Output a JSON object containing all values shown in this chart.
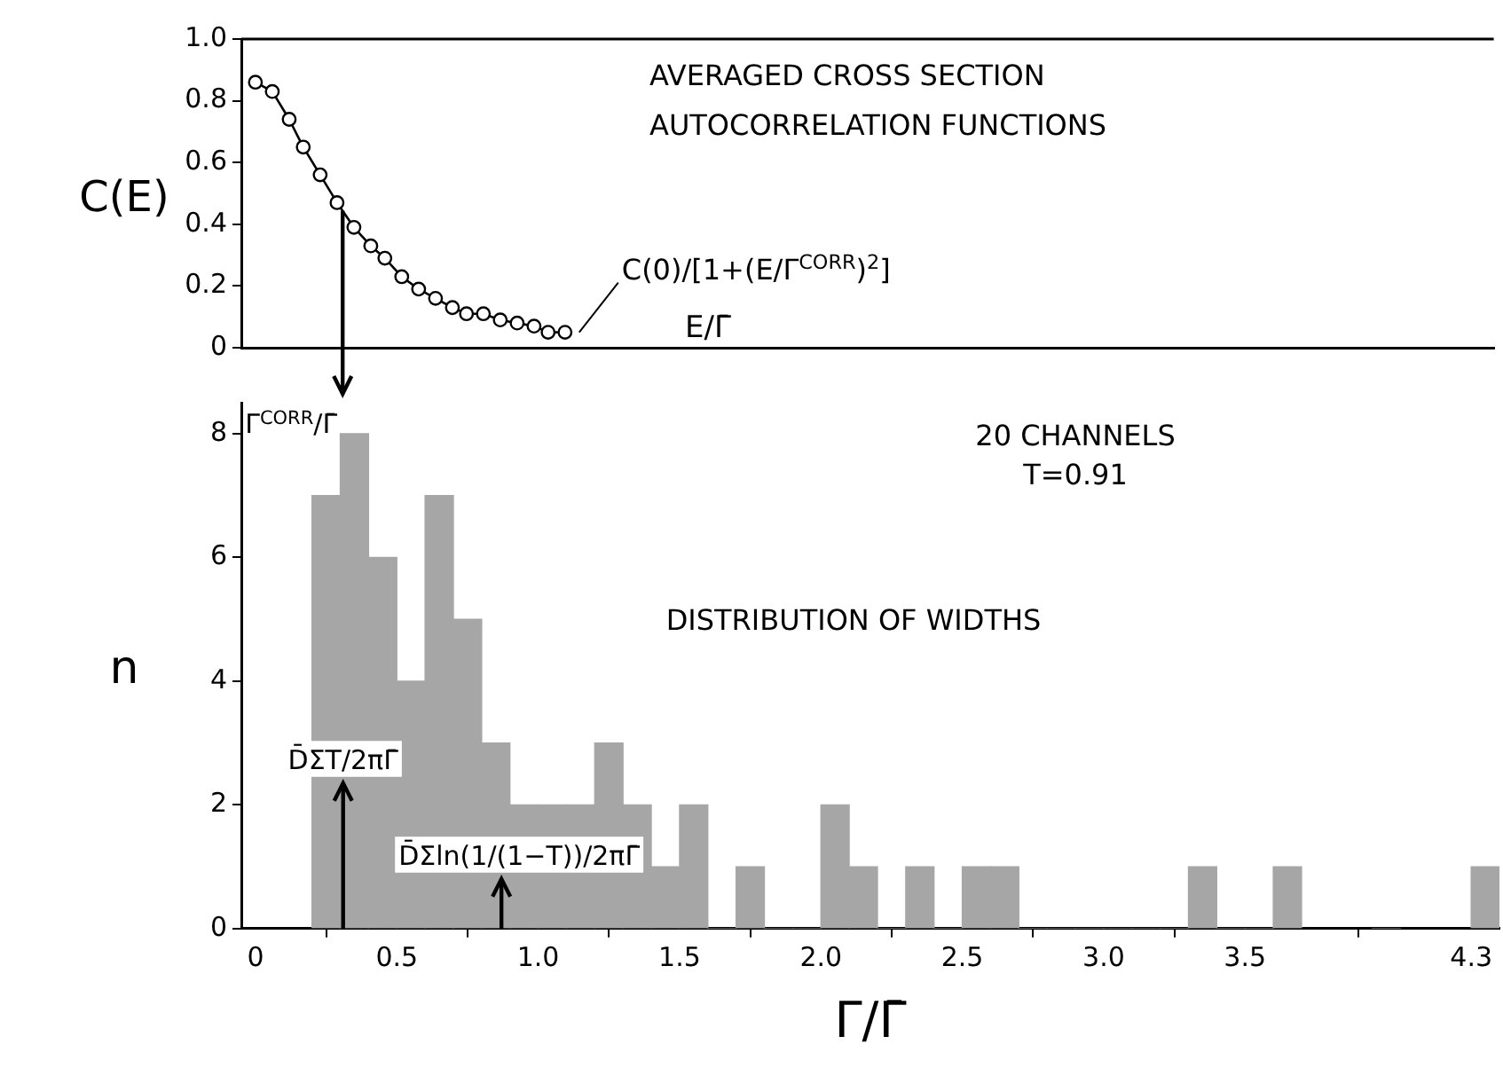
{
  "chart_data": [
    {
      "type": "line",
      "ylabel": "C(E)",
      "xlabel": "E/Γ̄",
      "marker": "circle",
      "tick_labels": "y",
      "xlim": [
        -0.05,
        4.4
      ],
      "ylim": [
        0,
        1
      ],
      "yticks": [
        0,
        0.2,
        0.4,
        0.6,
        0.8,
        {
          "value": 1,
          "label": "1.0"
        }
      ],
      "series": [
        {
          "color": "#000000",
          "x": [
            0,
            0.06,
            0.12,
            0.17,
            0.23,
            0.29,
            0.35,
            0.41,
            0.46,
            0.52,
            0.58,
            0.64,
            0.7,
            0.75,
            0.81,
            0.87,
            0.93,
            0.99,
            1.04,
            1.1
          ],
          "values": [
            0.86,
            0.83,
            0.74,
            0.65,
            0.56,
            0.47,
            0.39,
            0.33,
            0.29,
            0.23,
            0.19,
            0.16,
            0.13,
            0.11,
            0.11,
            0.09,
            0.08,
            0.07,
            0.05,
            0.05
          ]
        }
      ],
      "ref_lines": [
        {
          "axis": "x",
          "value": 0.31,
          "label": "Γ$^{CORR}$/Γ̄"
        }
      ],
      "annotations": [
        "AVERAGED CROSS SECTION\nAUTOCORRELATION FUNCTIONS",
        {
          "text": "C(0)/[1+(E/Γ$^{CORR}$)$^{2}$]",
          "x": 1.1,
          "y": 0.05
        }
      ]
    },
    {
      "type": "histogram",
      "xlabel": "Γ/Γ̄",
      "ylabel": "n",
      "color": "#a6a6a6",
      "bins": [
        0.2,
        0.3,
        0.4,
        0.5,
        0.6,
        0.7,
        0.8,
        0.9,
        1.0,
        1.1,
        1.2,
        1.3,
        1.4,
        1.5,
        1.6,
        1.7,
        1.8,
        1.9,
        2.0,
        2.1,
        2.2,
        2.3,
        2.4,
        2.5,
        2.6,
        2.7,
        2.8,
        2.9,
        3.0,
        3.1,
        3.2,
        3.3,
        3.4,
        3.5,
        3.6,
        3.7,
        4.3,
        4.4
      ],
      "values": [
        7,
        8,
        6,
        4,
        7,
        5,
        3,
        2,
        2,
        2,
        3,
        2,
        1,
        2,
        0,
        1,
        0,
        0,
        2,
        1,
        0,
        1,
        0,
        1,
        1,
        0,
        0,
        0,
        0,
        0,
        0,
        1,
        0,
        0,
        1,
        0,
        1
      ],
      "xlim": [
        -0.05,
        4.4
      ],
      "xticks": [
        0,
        0.5,
        {
          "value": 1,
          "label": "1.0"
        },
        1.5,
        {
          "value": 2,
          "label": "2.0"
        },
        2.5,
        {
          "value": 3,
          "label": "3.0"
        },
        3.5,
        4.3
      ],
      "ylim": [
        0,
        8.5
      ],
      "yticks": [
        0,
        2,
        4,
        6,
        8
      ],
      "ref_lines": [
        {
          "axis": "x",
          "value": 0.31,
          "label": "D̄ΣT/2πΓ̄"
        },
        {
          "axis": "x",
          "value": 0.87,
          "label": "D̄Σln(1/(1−T))/2πΓ̄"
        }
      ],
      "annotations": [
        "20 CHANNELS",
        "T=0.91",
        "DISTRIBUTION OF WIDTHS"
      ]
    }
  ]
}
